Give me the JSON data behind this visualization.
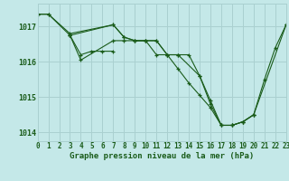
{
  "title": "Graphe pression niveau de la mer (hPa)",
  "background_color": "#c4e8e8",
  "grid_color": "#aad0d0",
  "line_color": "#1a5c1a",
  "series": [
    {
      "x": [
        0,
        1,
        3,
        7,
        8,
        9,
        10,
        11,
        12,
        13,
        15,
        16,
        17,
        18,
        19,
        20,
        23
      ],
      "y": [
        1017.35,
        1017.35,
        1016.8,
        1017.05,
        1016.7,
        1016.6,
        1016.6,
        1016.6,
        1016.2,
        1016.2,
        1015.6,
        1014.8,
        1014.2,
        1014.2,
        1014.3,
        1014.5,
        1017.05
      ]
    },
    {
      "x": [
        3,
        4,
        5,
        6,
        7
      ],
      "y": [
        1016.75,
        1016.2,
        1016.3,
        1016.3,
        1016.3
      ]
    },
    {
      "x": [
        3,
        4,
        7,
        8,
        9,
        10,
        11,
        12,
        13,
        14,
        15,
        16,
        17,
        18,
        19,
        20
      ],
      "y": [
        1016.75,
        1016.05,
        1016.6,
        1016.6,
        1016.6,
        1016.6,
        1016.2,
        1016.2,
        1015.8,
        1015.4,
        1015.05,
        1014.7,
        1014.2,
        1014.2,
        1014.3,
        1014.5
      ]
    },
    {
      "x": [
        0,
        1,
        3,
        7,
        8,
        9,
        10,
        11,
        12,
        13,
        14,
        15,
        16,
        17,
        18,
        19,
        20,
        21,
        22,
        23
      ],
      "y": [
        1017.35,
        1017.35,
        1016.75,
        1017.05,
        1016.7,
        1016.6,
        1016.6,
        1016.6,
        1016.2,
        1016.2,
        1016.2,
        1015.6,
        1014.9,
        1014.2,
        1014.2,
        1014.3,
        1014.5,
        1015.5,
        1016.4,
        1017.05
      ]
    }
  ],
  "xlim": [
    0,
    23
  ],
  "ylim": [
    1013.75,
    1017.65
  ],
  "yticks": [
    1014,
    1015,
    1016,
    1017
  ],
  "xticks": [
    0,
    1,
    2,
    3,
    4,
    5,
    6,
    7,
    8,
    9,
    10,
    11,
    12,
    13,
    14,
    15,
    16,
    17,
    18,
    19,
    20,
    21,
    22,
    23
  ],
  "xtick_labels": [
    "0",
    "1",
    "2",
    "3",
    "4",
    "5",
    "6",
    "7",
    "8",
    "9",
    "10",
    "11",
    "12",
    "13",
    "14",
    "15",
    "16",
    "17",
    "18",
    "19",
    "20",
    "21",
    "22",
    "23"
  ],
  "tick_fontsize": 5.5,
  "ytick_fontsize": 6.0,
  "xlabel_fontsize": 6.5
}
